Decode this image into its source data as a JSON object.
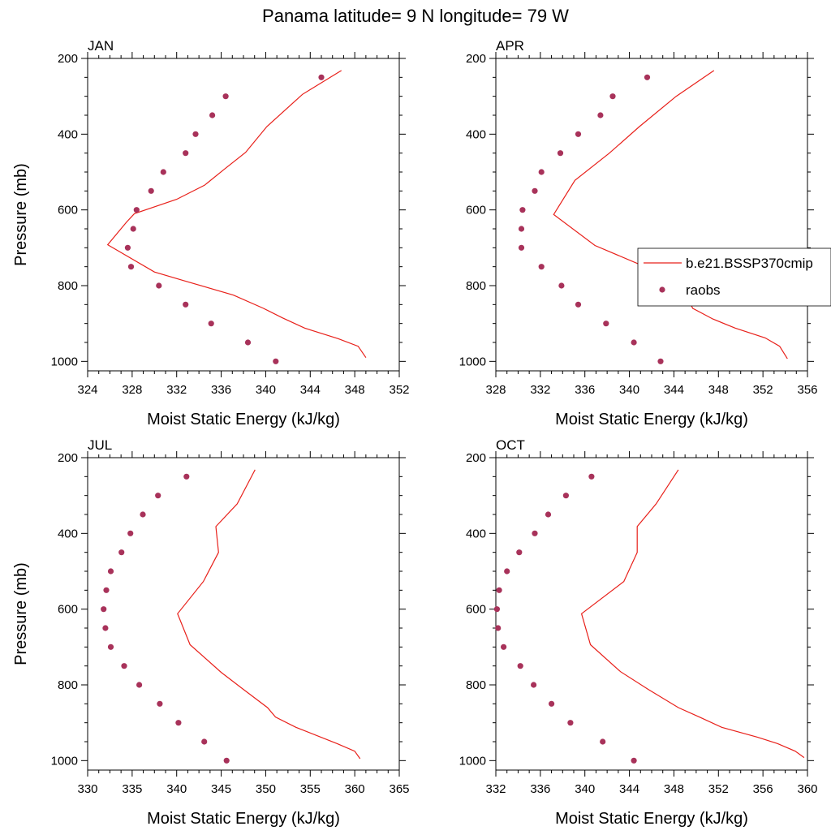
{
  "figure_title": "Panama  latitude= 9 N longitude= 79 W",
  "colors": {
    "model": "#e8201a",
    "obs": "#a8325a",
    "axis": "#000000"
  },
  "legend": {
    "placement": "right-middle of APR panel",
    "entries": [
      {
        "label": "b.e21.BSSP370cmip",
        "style": "line"
      },
      {
        "label": "raobs",
        "style": "marker"
      }
    ]
  },
  "chart_data": [
    {
      "type": "line+scatter",
      "title": "JAN",
      "xlabel": "Moist Static Energy (kJ/kg)",
      "ylabel": "Pressure (mb)",
      "xlim": [
        324,
        352
      ],
      "ylim": [
        200,
        1025
      ],
      "y_inverted": true,
      "xticks": [
        "324",
        "328",
        "332",
        "336",
        "340",
        "344",
        "348",
        "352"
      ],
      "yticks": [
        "200",
        "400",
        "600",
        "800",
        "1000"
      ],
      "series": [
        {
          "name": "b.e21.BSSP370cmip",
          "style": "line",
          "points": [
            [
              349.0,
              990
            ],
            [
              348.3,
              960
            ],
            [
              346.5,
              940
            ],
            [
              343.5,
              912
            ],
            [
              341.5,
              885
            ],
            [
              339.8,
              860
            ],
            [
              337.1,
              825
            ],
            [
              333,
              790
            ],
            [
              330,
              764
            ],
            [
              325.8,
              692
            ],
            [
              327.5,
              632
            ],
            [
              328.2,
              610
            ],
            [
              332,
              572
            ],
            [
              334.5,
              535
            ],
            [
              336.3,
              492
            ],
            [
              338.2,
              448
            ],
            [
              340.1,
              380
            ],
            [
              343.3,
              295
            ],
            [
              346.8,
              232
            ]
          ]
        },
        {
          "name": "raobs",
          "style": "marker",
          "points": [
            [
              340.9,
              1000
            ],
            [
              338.4,
              950
            ],
            [
              335.1,
              900
            ],
            [
              332.8,
              850
            ],
            [
              330.4,
              800
            ],
            [
              327.9,
              750
            ],
            [
              327.6,
              700
            ],
            [
              328.1,
              650
            ],
            [
              328.4,
              600
            ],
            [
              329.7,
              550
            ],
            [
              330.8,
              500
            ],
            [
              332.8,
              450
            ],
            [
              333.7,
              400
            ],
            [
              335.2,
              350
            ],
            [
              336.4,
              300
            ],
            [
              345,
              250
            ]
          ]
        }
      ]
    },
    {
      "type": "line+scatter",
      "title": "APR",
      "xlabel": "Moist Static Energy (kJ/kg)",
      "ylabel": "",
      "xlim": [
        328,
        356
      ],
      "ylim": [
        200,
        1025
      ],
      "y_inverted": true,
      "xticks": [
        "328",
        "332",
        "336",
        "340",
        "344",
        "348",
        "352",
        "356"
      ],
      "yticks": [
        "200",
        "400",
        "600",
        "800",
        "1000"
      ],
      "series": [
        {
          "name": "b.e21.BSSP370cmip",
          "style": "line",
          "points": [
            [
              354.2,
              993
            ],
            [
              353.5,
              960
            ],
            [
              352.2,
              938
            ],
            [
              349.5,
              912
            ],
            [
              347.5,
              888
            ],
            [
              345.7,
              860
            ],
            [
              344.8,
              810
            ],
            [
              342.2,
              760
            ],
            [
              336.9,
              694
            ],
            [
              333.2,
              612
            ],
            [
              335.1,
              522
            ],
            [
              338.2,
              450
            ],
            [
              340.9,
              380
            ],
            [
              344.2,
              300
            ],
            [
              347.6,
              232
            ]
          ]
        },
        {
          "name": "raobs",
          "style": "marker",
          "points": [
            [
              342.8,
              1000
            ],
            [
              340.4,
              950
            ],
            [
              337.9,
              900
            ],
            [
              335.4,
              850
            ],
            [
              333.9,
              800
            ],
            [
              332.1,
              750
            ],
            [
              330.3,
              700
            ],
            [
              330.3,
              650
            ],
            [
              330.4,
              600
            ],
            [
              331.5,
              550
            ],
            [
              332.1,
              500
            ],
            [
              333.8,
              450
            ],
            [
              335.4,
              400
            ],
            [
              337.4,
              350
            ],
            [
              338.5,
              300
            ],
            [
              341.6,
              250
            ]
          ]
        }
      ]
    },
    {
      "type": "line+scatter",
      "title": "JUL",
      "xlabel": "Moist Static Energy (kJ/kg)",
      "ylabel": "Pressure (mb)",
      "xlim": [
        330,
        365
      ],
      "ylim": [
        200,
        1025
      ],
      "y_inverted": true,
      "xticks": [
        "330",
        "335",
        "340",
        "345",
        "350",
        "355",
        "360",
        "365"
      ],
      "yticks": [
        "200",
        "400",
        "600",
        "800",
        "1000"
      ],
      "series": [
        {
          "name": "b.e21.BSSP370cmip",
          "style": "line",
          "points": [
            [
              360.6,
              995
            ],
            [
              360,
              975
            ],
            [
              358,
              955
            ],
            [
              353.4,
              912
            ],
            [
              351.1,
              885
            ],
            [
              350.2,
              860
            ],
            [
              347.5,
              812
            ],
            [
              345,
              767
            ],
            [
              341.5,
              694
            ],
            [
              340.1,
              612
            ],
            [
              343,
              527
            ],
            [
              344.7,
              450
            ],
            [
              344.4,
              382
            ],
            [
              346.8,
              322
            ],
            [
              348.8,
              232
            ]
          ]
        },
        {
          "name": "raobs",
          "style": "marker",
          "points": [
            [
              345.6,
              1000
            ],
            [
              343.1,
              950
            ],
            [
              340.2,
              900
            ],
            [
              338.1,
              850
            ],
            [
              335.8,
              800
            ],
            [
              334.1,
              750
            ],
            [
              332.6,
              700
            ],
            [
              332,
              650
            ],
            [
              331.8,
              600
            ],
            [
              332.1,
              550
            ],
            [
              332.6,
              500
            ],
            [
              333.8,
              450
            ],
            [
              334.8,
              400
            ],
            [
              336.2,
              350
            ],
            [
              337.9,
              300
            ],
            [
              341.1,
              250
            ]
          ]
        }
      ]
    },
    {
      "type": "line+scatter",
      "title": "OCT",
      "xlabel": "Moist Static Energy (kJ/kg)",
      "ylabel": "",
      "xlim": [
        332,
        360
      ],
      "ylim": [
        200,
        1025
      ],
      "y_inverted": true,
      "xticks": [
        "332",
        "336",
        "340",
        "344",
        "348",
        "352",
        "356",
        "360"
      ],
      "yticks": [
        "200",
        "400",
        "600",
        "800",
        "1000"
      ],
      "series": [
        {
          "name": "b.e21.BSSP370cmip",
          "style": "line",
          "points": [
            [
              359.7,
              992
            ],
            [
              358.9,
              975
            ],
            [
              357.3,
              955
            ],
            [
              355.5,
              938
            ],
            [
              352.3,
              912
            ],
            [
              350.3,
              885
            ],
            [
              348.4,
              860
            ],
            [
              345.7,
              812
            ],
            [
              343.2,
              765
            ],
            [
              340.5,
              694
            ],
            [
              339.7,
              612
            ],
            [
              343.5,
              527
            ],
            [
              344.7,
              450
            ],
            [
              344.7,
              382
            ],
            [
              346.4,
              322
            ],
            [
              348.4,
              232
            ]
          ]
        },
        {
          "name": "raobs",
          "style": "marker",
          "points": [
            [
              344.4,
              1000
            ],
            [
              341.6,
              950
            ],
            [
              338.7,
              900
            ],
            [
              337,
              850
            ],
            [
              335.4,
              800
            ],
            [
              334.2,
              750
            ],
            [
              332.7,
              700
            ],
            [
              332.2,
              650
            ],
            [
              332.1,
              600
            ],
            [
              332.3,
              550
            ],
            [
              333,
              500
            ],
            [
              334.1,
              450
            ],
            [
              335.5,
              400
            ],
            [
              336.7,
              350
            ],
            [
              338.3,
              300
            ],
            [
              340.6,
              250
            ]
          ]
        }
      ]
    }
  ]
}
